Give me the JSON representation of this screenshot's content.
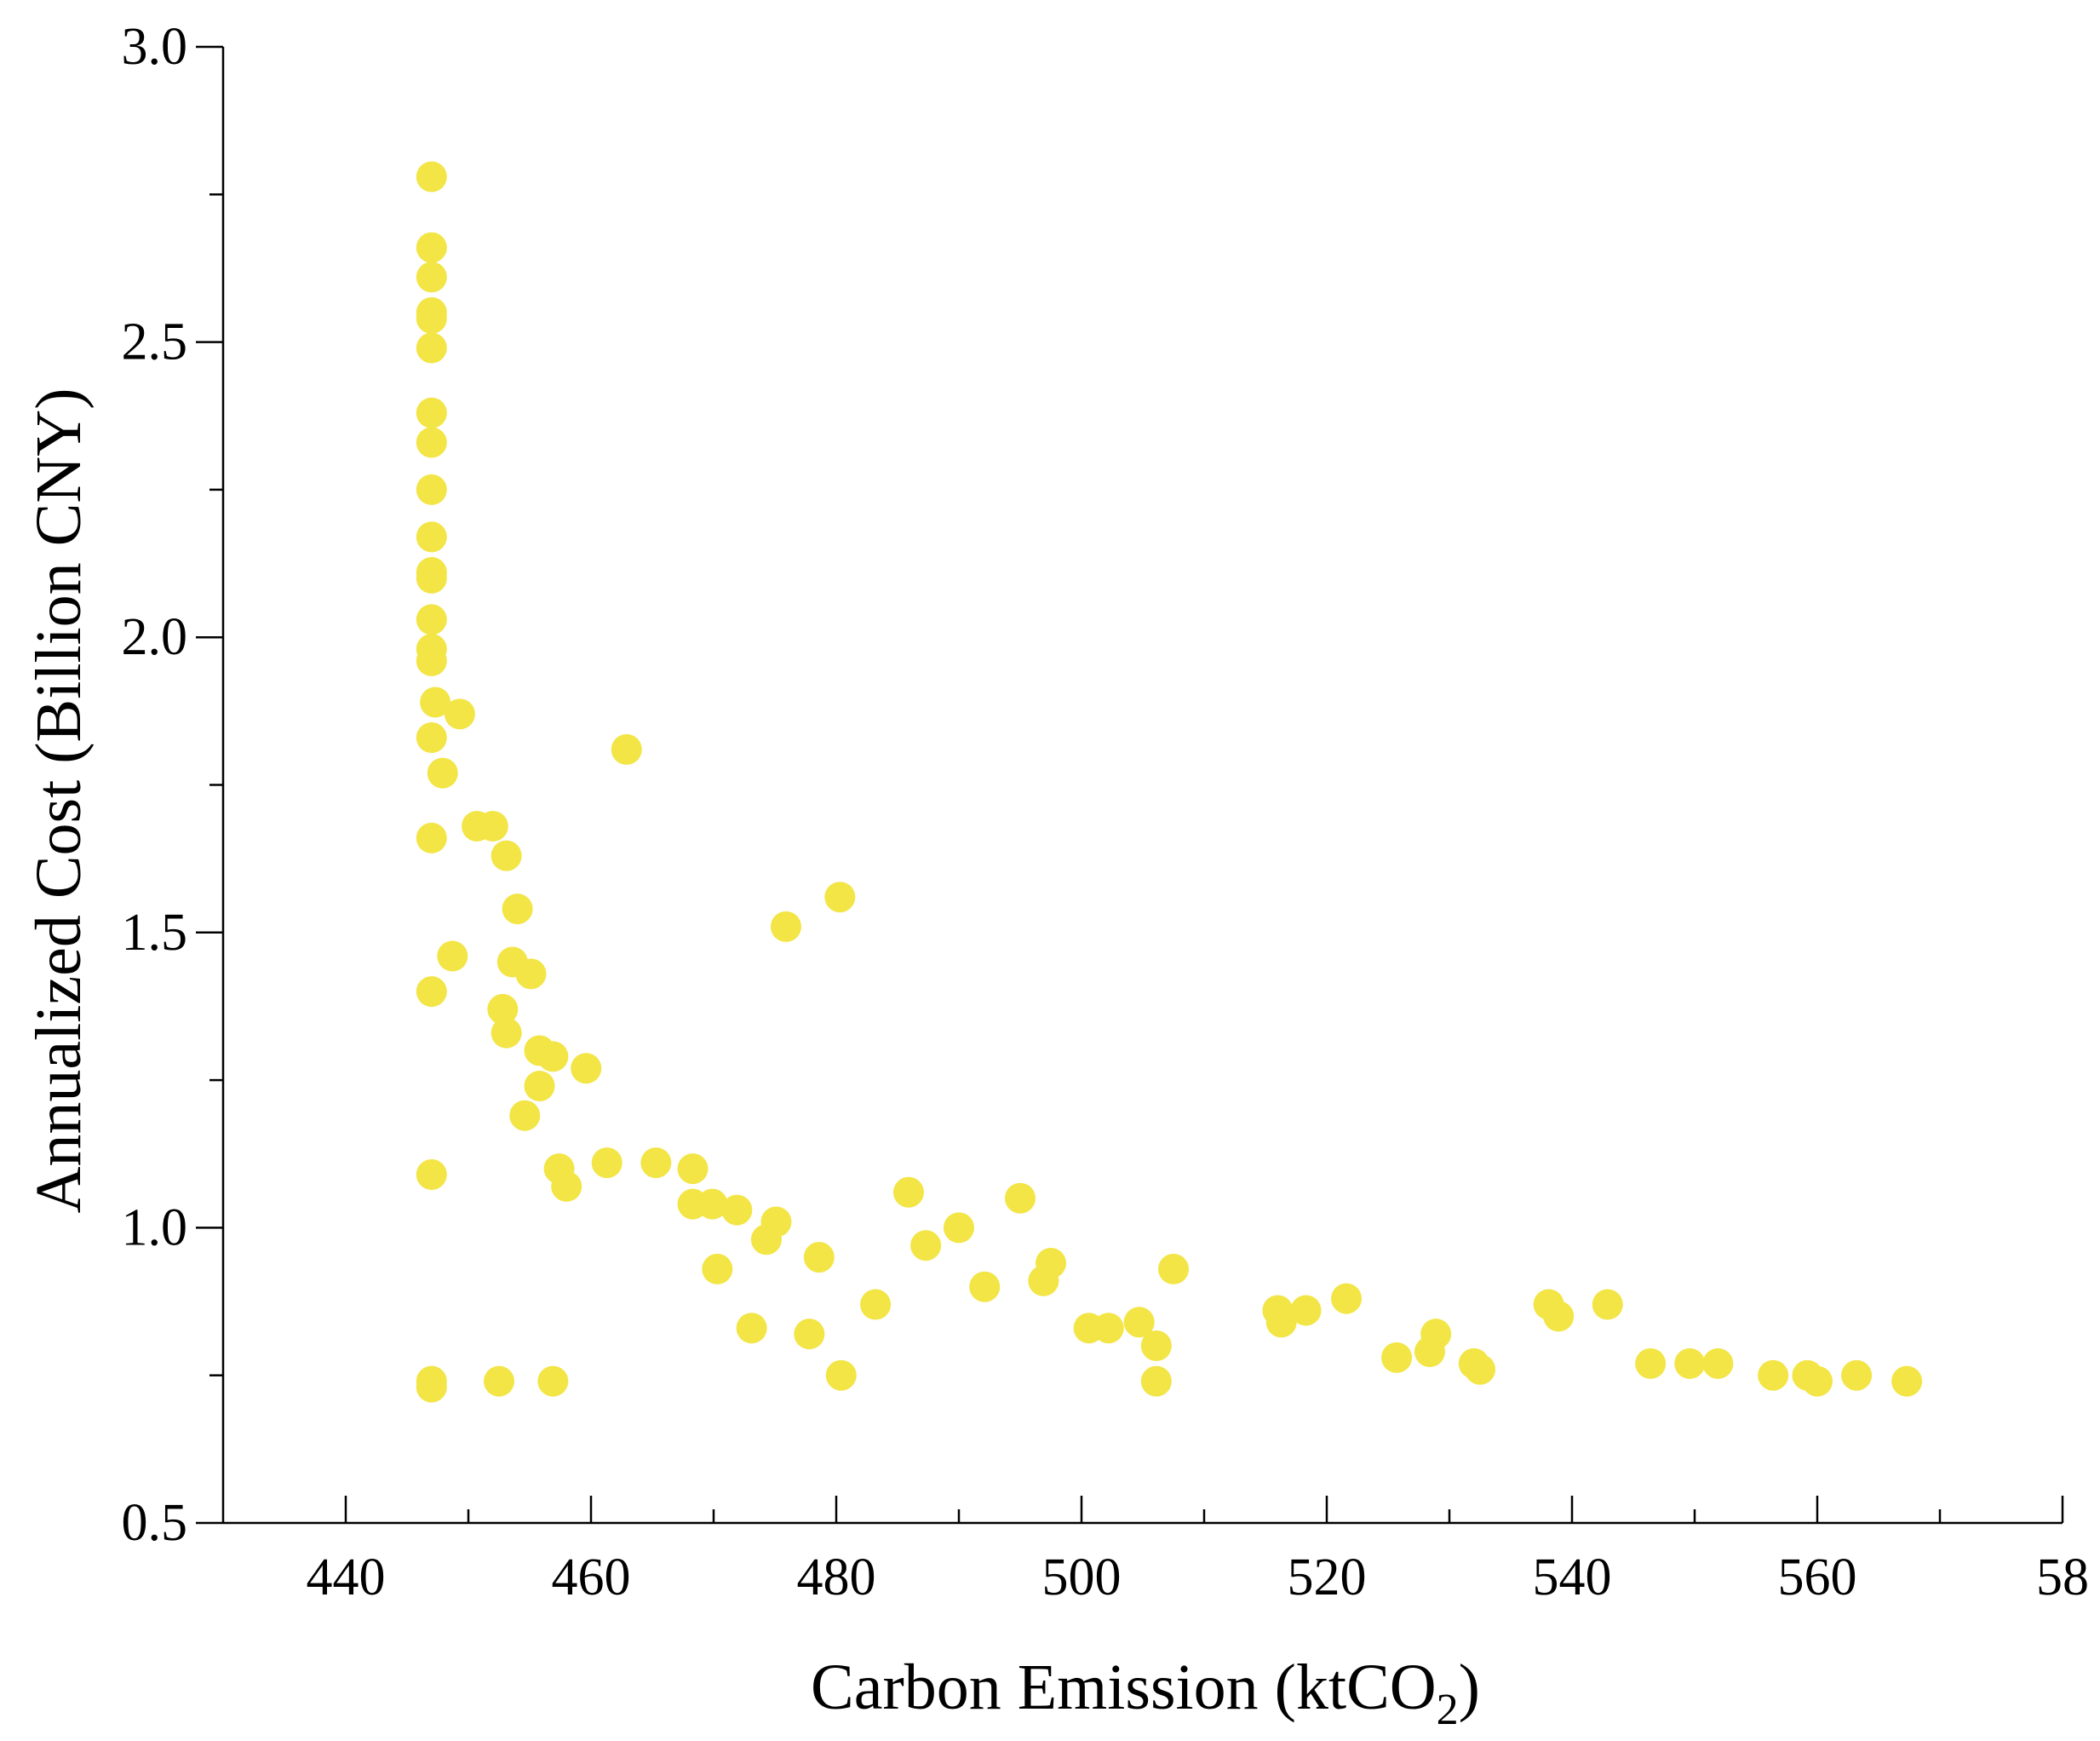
{
  "chart_data": {
    "type": "scatter",
    "title": "",
    "xlabel": "Carbon Emission (ktCO",
    "xlabel_subscript": "2",
    "xlabel_close": ")",
    "ylabel": "Annualized Cost (Billion CNY)",
    "xlim": [
      430,
      580
    ],
    "ylim": [
      0.5,
      3.0
    ],
    "x_ticks": [
      "440",
      "460",
      "480",
      "500",
      "520",
      "540",
      "560",
      "58"
    ],
    "y_ticks": [
      "0.5",
      "1.0",
      "1.5",
      "2.0",
      "2.5",
      "3.0"
    ],
    "grid": false,
    "legend": "none",
    "marker_color": "#F2E545",
    "series": [
      {
        "points": [
          [
            447.0,
            2.78
          ],
          [
            447.0,
            2.66
          ],
          [
            447.0,
            2.61
          ],
          [
            447.0,
            2.55
          ],
          [
            447.0,
            2.54
          ],
          [
            447.0,
            2.49
          ],
          [
            447.0,
            2.38
          ],
          [
            447.0,
            2.33
          ],
          [
            447.0,
            2.25
          ],
          [
            447.0,
            2.17
          ],
          [
            447.0,
            2.11
          ],
          [
            447.0,
            2.1
          ],
          [
            447.0,
            2.03
          ],
          [
            447.0,
            1.98
          ],
          [
            447.0,
            1.96
          ],
          [
            447.3,
            1.89
          ],
          [
            449.3,
            1.87
          ],
          [
            447.0,
            1.83
          ],
          [
            447.9,
            1.77
          ],
          [
            462.9,
            1.81
          ],
          [
            450.7,
            1.68
          ],
          [
            452.0,
            1.68
          ],
          [
            453.1,
            1.63
          ],
          [
            447.0,
            1.66
          ],
          [
            454.0,
            1.54
          ],
          [
            475.9,
            1.51
          ],
          [
            480.3,
            1.56
          ],
          [
            448.7,
            1.46
          ],
          [
            453.6,
            1.45
          ],
          [
            455.1,
            1.43
          ],
          [
            447.0,
            1.4
          ],
          [
            452.8,
            1.37
          ],
          [
            453.1,
            1.33
          ],
          [
            455.8,
            1.3
          ],
          [
            456.9,
            1.29
          ],
          [
            459.6,
            1.27
          ],
          [
            455.8,
            1.24
          ],
          [
            454.6,
            1.19
          ],
          [
            447.0,
            1.09
          ],
          [
            457.4,
            1.1
          ],
          [
            458.0,
            1.07
          ],
          [
            461.3,
            1.11
          ],
          [
            465.3,
            1.11
          ],
          [
            468.3,
            1.1
          ],
          [
            468.3,
            1.04
          ],
          [
            469.9,
            1.04
          ],
          [
            471.9,
            1.03
          ],
          [
            475.1,
            1.01
          ],
          [
            474.3,
            0.98
          ],
          [
            485.9,
            1.06
          ],
          [
            487.3,
            0.97
          ],
          [
            490.0,
            1.0
          ],
          [
            495.0,
            1.05
          ],
          [
            470.3,
            0.93
          ],
          [
            478.6,
            0.95
          ],
          [
            497.5,
            0.94
          ],
          [
            496.9,
            0.91
          ],
          [
            507.5,
            0.93
          ],
          [
            492.1,
            0.9
          ],
          [
            483.2,
            0.87
          ],
          [
            473.1,
            0.83
          ],
          [
            477.8,
            0.82
          ],
          [
            500.6,
            0.83
          ],
          [
            502.2,
            0.83
          ],
          [
            504.7,
            0.84
          ],
          [
            506.1,
            0.8
          ],
          [
            516.0,
            0.86
          ],
          [
            516.3,
            0.84
          ],
          [
            518.3,
            0.86
          ],
          [
            521.6,
            0.88
          ],
          [
            538.1,
            0.87
          ],
          [
            538.9,
            0.85
          ],
          [
            542.9,
            0.87
          ],
          [
            528.9,
            0.82
          ],
          [
            528.4,
            0.79
          ],
          [
            525.7,
            0.78
          ],
          [
            532.0,
            0.77
          ],
          [
            532.5,
            0.76
          ],
          [
            546.4,
            0.77
          ],
          [
            549.6,
            0.77
          ],
          [
            551.9,
            0.77
          ],
          [
            556.4,
            0.75
          ],
          [
            559.2,
            0.75
          ],
          [
            560.0,
            0.74
          ],
          [
            563.2,
            0.75
          ],
          [
            567.3,
            0.74
          ],
          [
            480.4,
            0.75
          ],
          [
            506.1,
            0.74
          ],
          [
            447.0,
            0.74
          ],
          [
            447.0,
            0.73
          ],
          [
            452.5,
            0.74
          ],
          [
            456.9,
            0.74
          ]
        ]
      }
    ]
  }
}
